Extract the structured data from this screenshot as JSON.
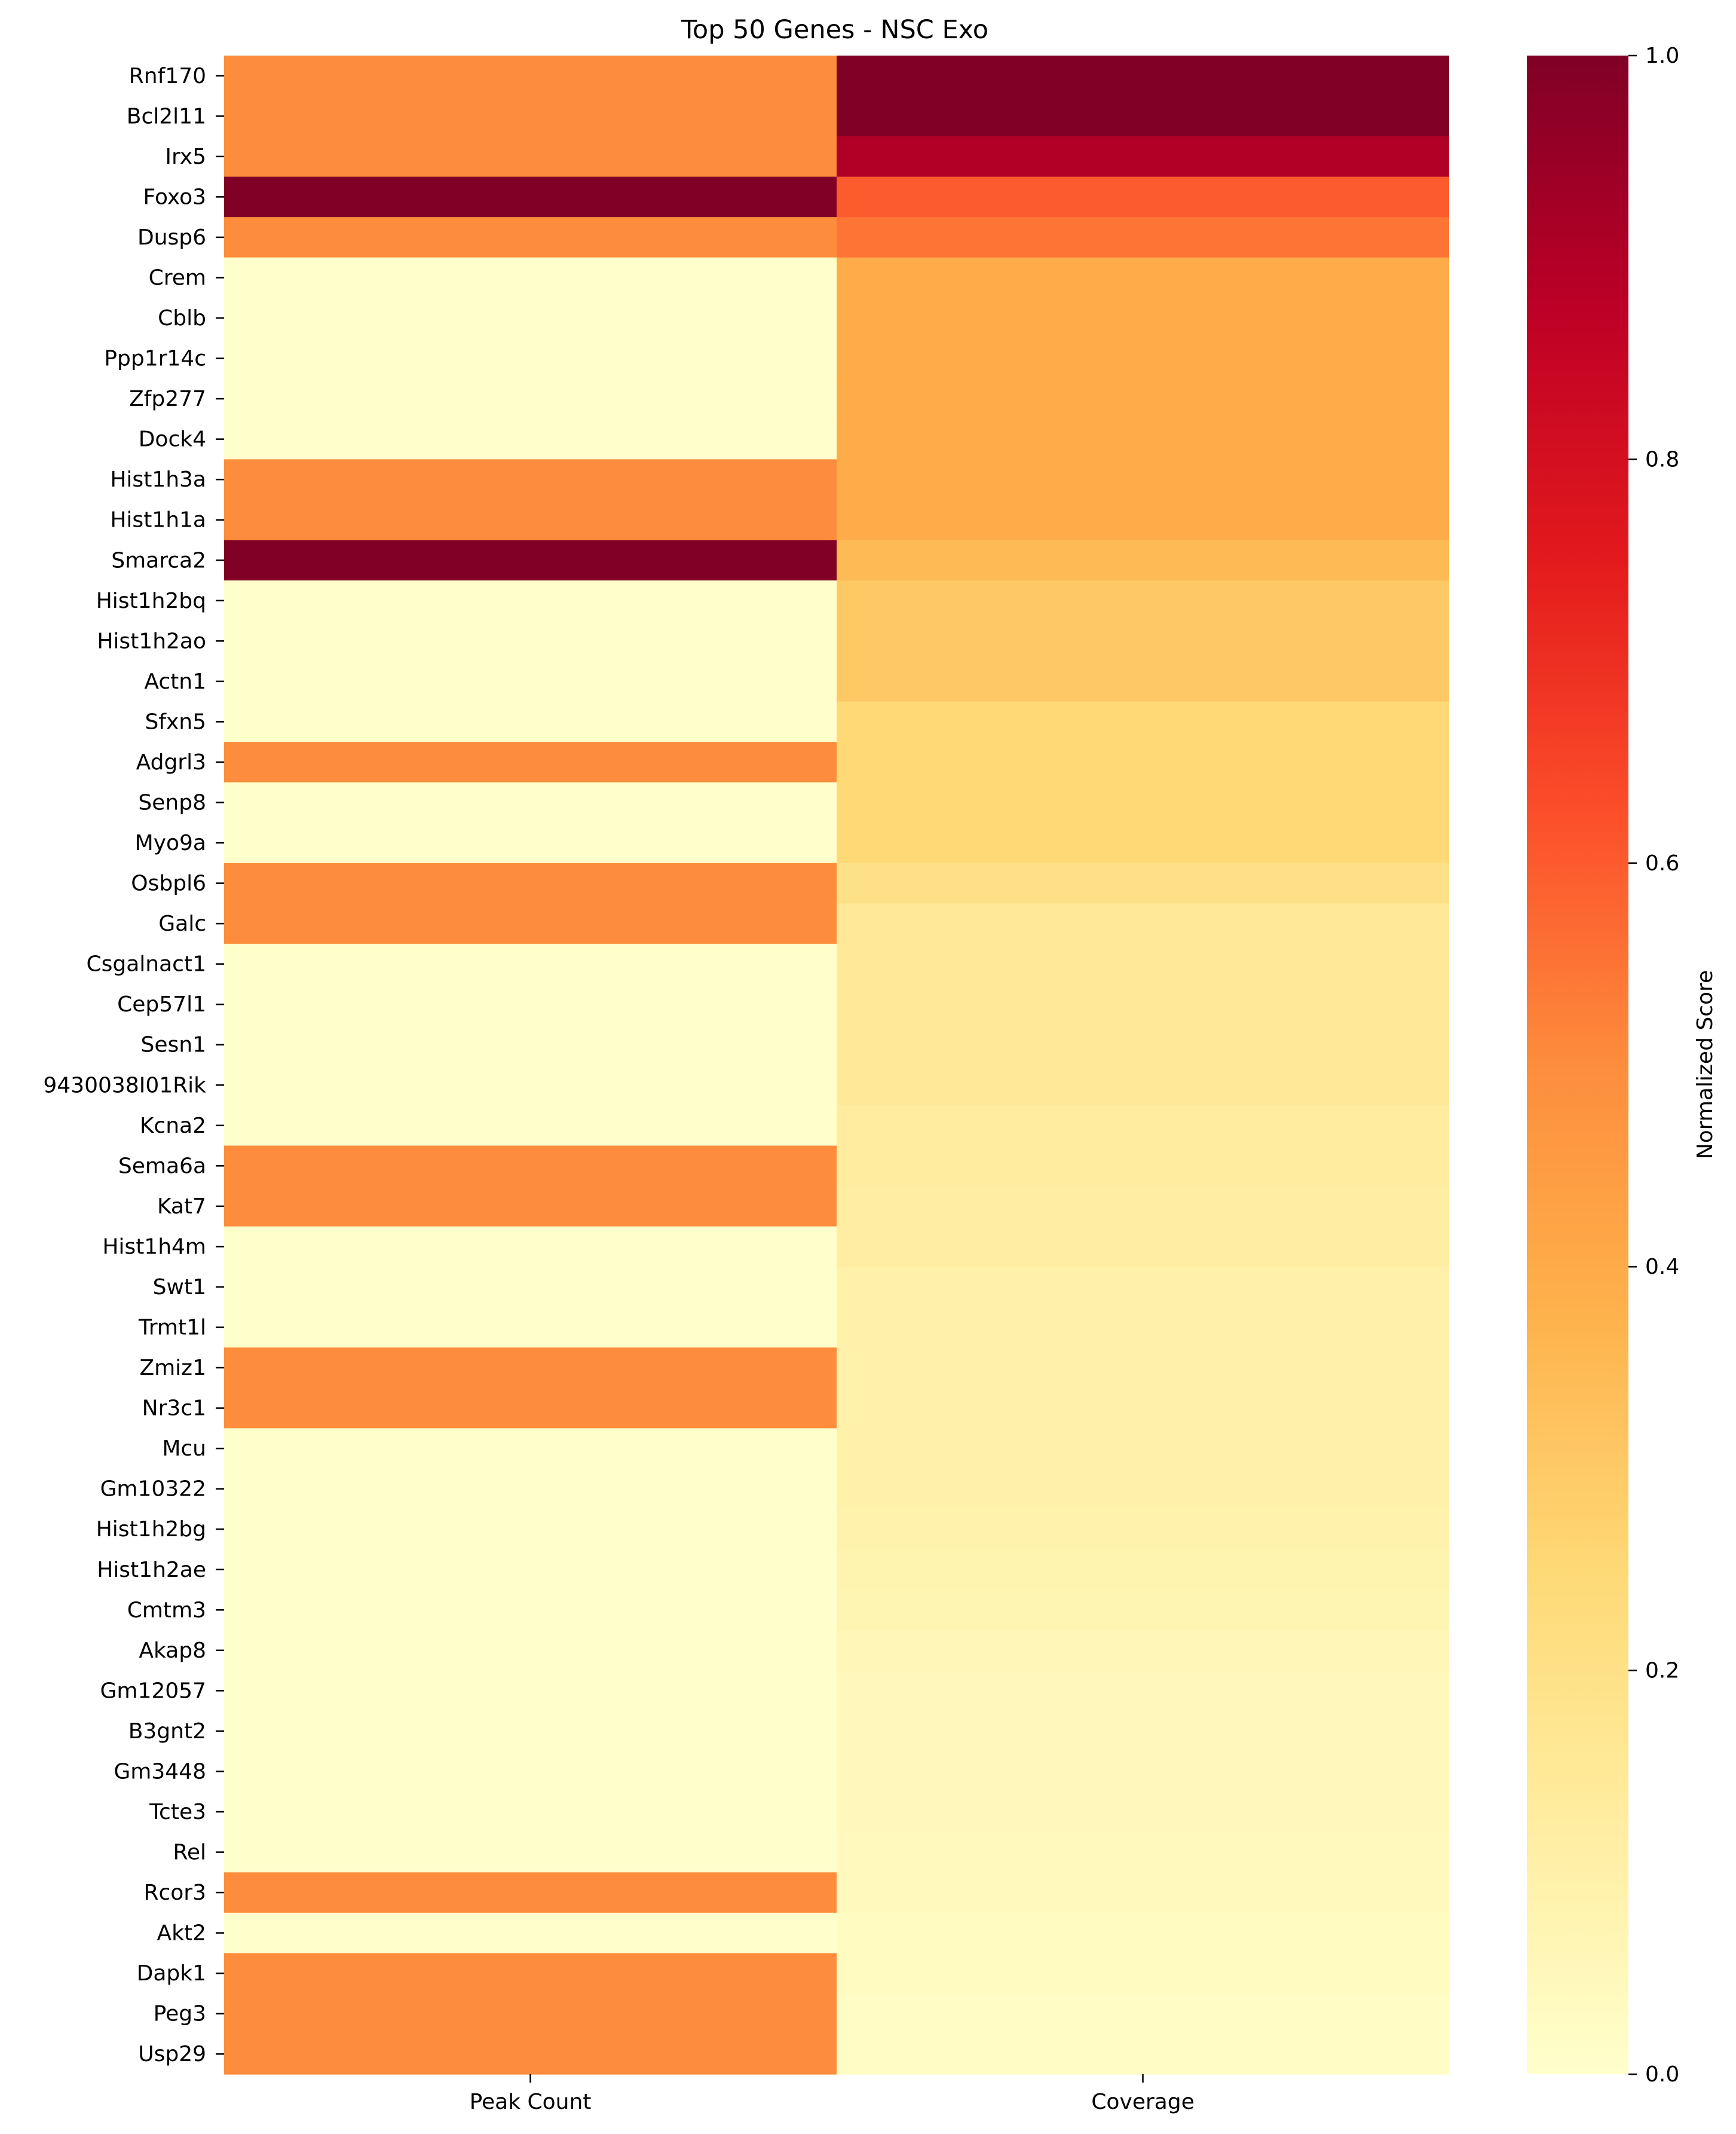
{
  "chart_data": {
    "type": "heatmap",
    "title": "Top 50 Genes - NSC Exo",
    "x_categories": [
      "Peak Count",
      "Coverage"
    ],
    "y_categories": [
      "Rnf170",
      "Bcl2l11",
      "Irx5",
      "Foxo3",
      "Dusp6",
      "Crem",
      "Cblb",
      "Ppp1r14c",
      "Zfp277",
      "Dock4",
      "Hist1h3a",
      "Hist1h1a",
      "Smarca2",
      "Hist1h2bq",
      "Hist1h2ao",
      "Actn1",
      "Sfxn5",
      "Adgrl3",
      "Senp8",
      "Myo9a",
      "Osbpl6",
      "Galc",
      "Csgalnact1",
      "Cep57l1",
      "Sesn1",
      "9430038I01Rik",
      "Kcna2",
      "Sema6a",
      "Kat7",
      "Hist1h4m",
      "Swt1",
      "Trmt1l",
      "Zmiz1",
      "Nr3c1",
      "Mcu",
      "Gm10322",
      "Hist1h2bg",
      "Hist1h2ae",
      "Cmtm3",
      "Akap8",
      "Gm12057",
      "B3gnt2",
      "Gm3448",
      "Tcte3",
      "Rel",
      "Rcor3",
      "Akt2",
      "Dapk1",
      "Peg3",
      "Usp29"
    ],
    "values": [
      [
        0.5,
        1.0
      ],
      [
        0.5,
        1.0
      ],
      [
        0.5,
        0.9
      ],
      [
        1.0,
        0.6
      ],
      [
        0.5,
        0.55
      ],
      [
        0.0,
        0.4
      ],
      [
        0.0,
        0.4
      ],
      [
        0.0,
        0.4
      ],
      [
        0.0,
        0.4
      ],
      [
        0.0,
        0.4
      ],
      [
        0.5,
        0.4
      ],
      [
        0.5,
        0.4
      ],
      [
        1.0,
        0.35
      ],
      [
        0.0,
        0.3
      ],
      [
        0.0,
        0.3
      ],
      [
        0.0,
        0.3
      ],
      [
        0.0,
        0.25
      ],
      [
        0.5,
        0.25
      ],
      [
        0.0,
        0.25
      ],
      [
        0.0,
        0.25
      ],
      [
        0.5,
        0.2
      ],
      [
        0.5,
        0.15
      ],
      [
        0.0,
        0.15
      ],
      [
        0.0,
        0.15
      ],
      [
        0.0,
        0.15
      ],
      [
        0.0,
        0.15
      ],
      [
        0.0,
        0.13
      ],
      [
        0.5,
        0.13
      ],
      [
        0.5,
        0.12
      ],
      [
        0.0,
        0.12
      ],
      [
        0.0,
        0.1
      ],
      [
        0.0,
        0.1
      ],
      [
        0.5,
        0.1
      ],
      [
        0.5,
        0.1
      ],
      [
        0.0,
        0.1
      ],
      [
        0.0,
        0.1
      ],
      [
        0.0,
        0.09
      ],
      [
        0.0,
        0.08
      ],
      [
        0.0,
        0.07
      ],
      [
        0.0,
        0.06
      ],
      [
        0.0,
        0.05
      ],
      [
        0.0,
        0.05
      ],
      [
        0.0,
        0.05
      ],
      [
        0.0,
        0.05
      ],
      [
        0.0,
        0.04
      ],
      [
        0.5,
        0.04
      ],
      [
        0.0,
        0.03
      ],
      [
        0.5,
        0.03
      ],
      [
        0.5,
        0.02
      ],
      [
        0.5,
        0.02
      ]
    ],
    "colormap": "YlOrRd",
    "vmin": 0.0,
    "vmax": 1.0,
    "colorbar": {
      "label": "Normalized Score",
      "ticks": [
        "0.0",
        "0.2",
        "0.4",
        "0.6",
        "0.8",
        "1.0"
      ]
    }
  }
}
